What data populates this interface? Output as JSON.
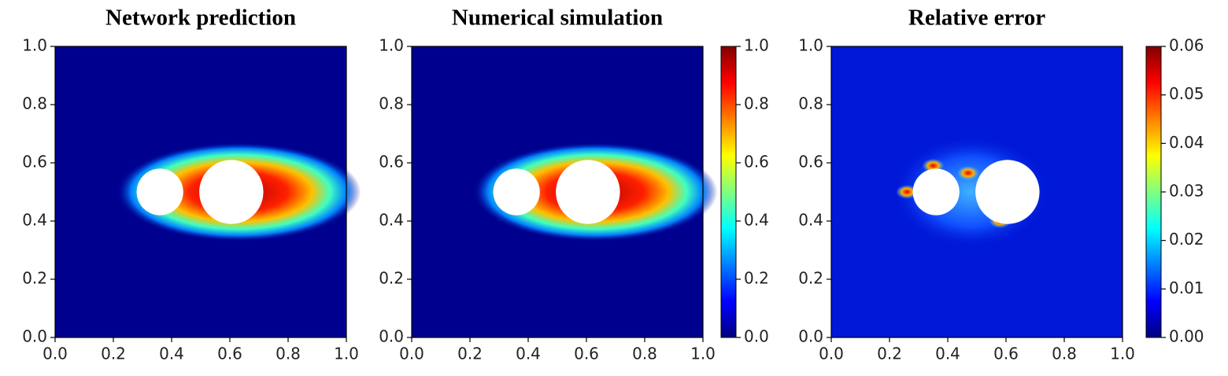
{
  "chart_data": [
    {
      "type": "heatmap",
      "title": "Network prediction",
      "colormap": "jet",
      "xlim": [
        0,
        1
      ],
      "ylim": [
        0,
        1
      ],
      "xticks": [
        {
          "value": 0,
          "label": "0.0"
        },
        0.2,
        0.4,
        0.6,
        0.8,
        {
          "value": 1,
          "label": "1.0"
        }
      ],
      "yticks": [
        {
          "value": 0,
          "label": "0.0"
        },
        0.2,
        0.4,
        0.6,
        0.8,
        {
          "value": 1,
          "label": "1.0"
        }
      ]
    },
    {
      "type": "heatmap",
      "title": "Numerical simulation",
      "colormap": "jet",
      "xlim": [
        0,
        1
      ],
      "ylim": [
        0,
        1
      ],
      "xticks": [
        {
          "value": 0,
          "label": "0.0"
        },
        0.2,
        0.4,
        0.6,
        0.8,
        {
          "value": 1,
          "label": "1.0"
        }
      ],
      "yticks": [
        {
          "value": 0,
          "label": "0.0"
        },
        0.2,
        0.4,
        0.6,
        0.8,
        {
          "value": 1,
          "label": "1.0"
        }
      ],
      "colorbar": {
        "lim": [
          0,
          1
        ],
        "ticks": [
          {
            "value": 0,
            "label": "0.0"
          },
          0.2,
          0.4,
          0.6,
          0.8,
          {
            "value": 1,
            "label": "1.0"
          }
        ]
      }
    },
    {
      "type": "heatmap",
      "title": "Relative error",
      "colormap": "jet",
      "xlim": [
        0,
        1
      ],
      "ylim": [
        0,
        1
      ],
      "xticks": [
        {
          "value": 0,
          "label": "0.0"
        },
        0.2,
        0.4,
        0.6,
        0.8,
        {
          "value": 1,
          "label": "1.0"
        }
      ],
      "yticks": [
        {
          "value": 0,
          "label": "0.0"
        },
        0.2,
        0.4,
        0.6,
        0.8,
        {
          "value": 1,
          "label": "1.0"
        }
      ],
      "colorbar": {
        "lim": [
          0,
          0.06
        ],
        "ticks": [
          {
            "value": 0,
            "label": "0.00"
          },
          0.01,
          0.02,
          0.03,
          0.04,
          0.05,
          0.06
        ]
      }
    }
  ]
}
